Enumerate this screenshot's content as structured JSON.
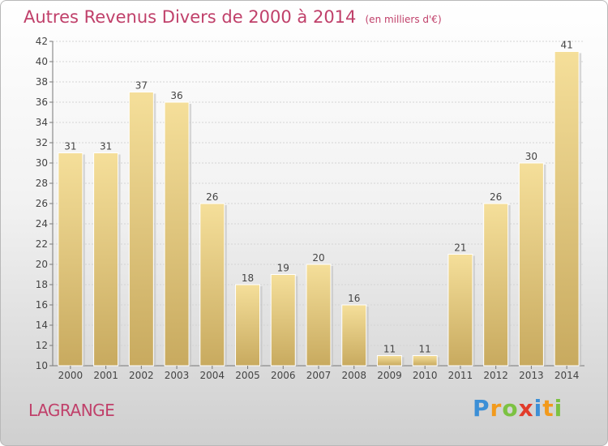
{
  "chart_data": {
    "type": "bar",
    "title": "Autres Revenus Divers de 2000 à 2014",
    "subtitle": "(en milliers d'€)",
    "categories": [
      "2000",
      "2001",
      "2002",
      "2003",
      "2004",
      "2005",
      "2006",
      "2007",
      "2008",
      "2009",
      "2010",
      "2011",
      "2012",
      "2013",
      "2014"
    ],
    "values": [
      31,
      31,
      37,
      36,
      26,
      18,
      19,
      20,
      16,
      11,
      11,
      21,
      26,
      30,
      41
    ],
    "ylim": [
      10,
      42
    ],
    "yticks": [
      10,
      12,
      14,
      16,
      18,
      20,
      22,
      24,
      26,
      28,
      30,
      32,
      34,
      36,
      38,
      40,
      42
    ],
    "grid": true,
    "bar_color_top": "#f5df9a",
    "bar_color_bottom": "#c8aa5f"
  },
  "location": "LAGRANGE",
  "logo": {
    "letters": [
      "P",
      "r",
      "o",
      "x",
      "i",
      "t",
      "i"
    ]
  }
}
